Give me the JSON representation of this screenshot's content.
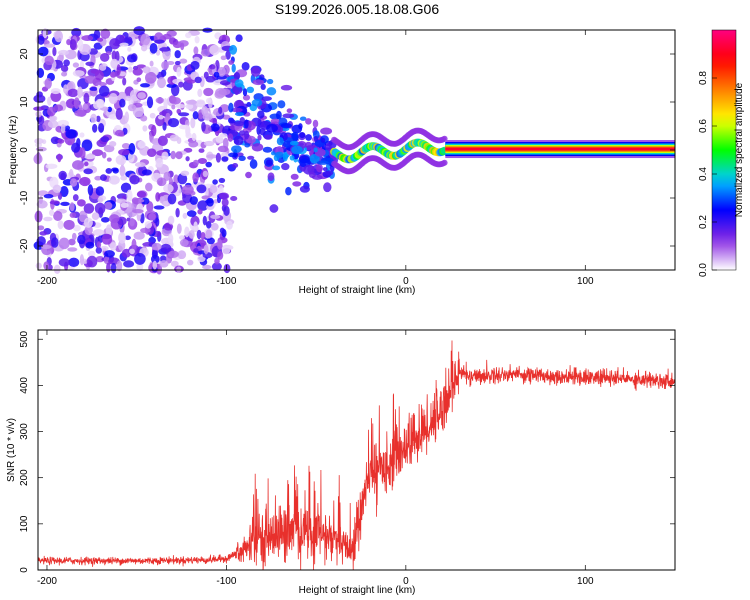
{
  "title": "S199.2026.005.18.08.G06",
  "chart_data": [
    {
      "type": "heatmap",
      "xlabel": "Height of straight line (km)",
      "ylabel": "Frequency (Hz)",
      "xlim": [
        -205,
        150
      ],
      "ylim": [
        -25,
        25
      ],
      "xticks": [
        -200,
        -100,
        0,
        100
      ],
      "yticks": [
        -20,
        -10,
        0,
        10,
        20
      ],
      "colorbar": {
        "label": "Normalized spectral amplitude",
        "range": [
          0.0,
          1.0
        ],
        "ticks": [
          0.0,
          0.2,
          0.4,
          0.6,
          0.8
        ],
        "colormap": [
          "#ffffff",
          "#8a2be2",
          "#0000ff",
          "#00c8ff",
          "#00ff00",
          "#ffff00",
          "#ff8000",
          "#ff0000",
          "#ff0080"
        ]
      },
      "regions": [
        {
          "name": "noise",
          "x_range": [
            -205,
            -98
          ],
          "y_range": [
            -25,
            25
          ],
          "amplitude": [
            0.02,
            0.25
          ]
        },
        {
          "name": "transition",
          "x_range": [
            -98,
            -40
          ],
          "y_center": [
            8,
            -3
          ],
          "y_spread": [
            15,
            4
          ],
          "amplitude": [
            0.1,
            0.35
          ]
        },
        {
          "name": "wavy-ridge",
          "x_range": [
            -40,
            22
          ],
          "y_center": [
            -1,
            0.8
          ],
          "amplitude": [
            0.3,
            0.7
          ]
        },
        {
          "name": "stable-ridge",
          "x_range": [
            22,
            150
          ],
          "y_center": 0.2,
          "amplitude": [
            0.8,
            0.95
          ]
        }
      ]
    },
    {
      "type": "line",
      "xlabel": "Height of straight line (km)",
      "ylabel": "SNR (10 * v/v)",
      "xlim": [
        -205,
        150
      ],
      "ylim": [
        0,
        520
      ],
      "xticks": [
        -200,
        -100,
        0,
        100
      ],
      "yticks": [
        0,
        100,
        200,
        300,
        400,
        500
      ],
      "color": "#e8302c",
      "series": [
        {
          "name": "SNR",
          "x": [
            -205,
            -150,
            -110,
            -100,
            -90,
            -80,
            -70,
            -60,
            -50,
            -40,
            -30,
            -20,
            -10,
            0,
            10,
            20,
            30,
            35,
            40,
            60,
            80,
            100,
            120,
            150
          ],
          "y": [
            20,
            20,
            22,
            25,
            45,
            70,
            80,
            80,
            80,
            65,
            40,
            210,
            230,
            270,
            300,
            350,
            430,
            420,
            420,
            425,
            420,
            418,
            415,
            410
          ]
        }
      ]
    }
  ]
}
